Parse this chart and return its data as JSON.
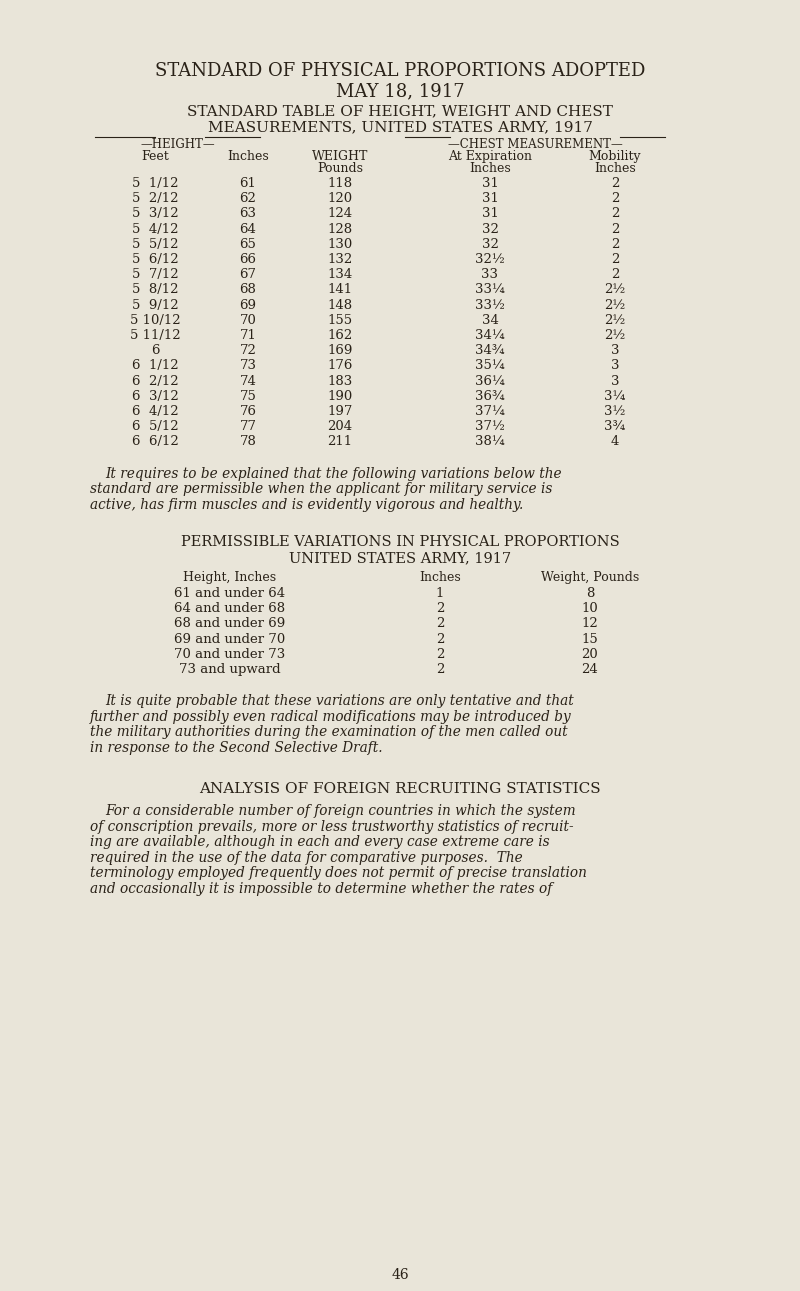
{
  "bg_color": "#e9e5d9",
  "text_color": "#2a2218",
  "page_title1": "STANDARD OF PHYSICAL PROPORTIONS ADOPTED",
  "page_title2": "MAY 18, 1917",
  "subtitle1": "STANDARD TABLE OF HEIGHT, WEIGHT AND CHEST",
  "subtitle2": "MEASUREMENTS, UNITED STATES ARMY, 1917",
  "table1_rows": [
    [
      "5  1/12",
      "61",
      "118",
      "31",
      "2"
    ],
    [
      "5  2/12",
      "62",
      "120",
      "31",
      "2"
    ],
    [
      "5  3/12",
      "63",
      "124",
      "31",
      "2"
    ],
    [
      "5  4/12",
      "64",
      "128",
      "32",
      "2"
    ],
    [
      "5  5/12",
      "65",
      "130",
      "32",
      "2"
    ],
    [
      "5  6/12",
      "66",
      "132",
      "32½",
      "2"
    ],
    [
      "5  7/12",
      "67",
      "134",
      "33",
      "2"
    ],
    [
      "5  8/12",
      "68",
      "141",
      "33¼",
      "2½"
    ],
    [
      "5  9/12",
      "69",
      "148",
      "33½",
      "2½"
    ],
    [
      "5 10/12",
      "70",
      "155",
      "34",
      "2½"
    ],
    [
      "5 11/12",
      "71",
      "162",
      "34¼",
      "2½"
    ],
    [
      "6",
      "72",
      "169",
      "34¾",
      "3"
    ],
    [
      "6  1/12",
      "73",
      "176",
      "35¼",
      "3"
    ],
    [
      "6  2/12",
      "74",
      "183",
      "36¼",
      "3"
    ],
    [
      "6  3/12",
      "75",
      "190",
      "36¾",
      "3¼"
    ],
    [
      "6  4/12",
      "76",
      "197",
      "37¼",
      "3½"
    ],
    [
      "6  5/12",
      "77",
      "204",
      "37½",
      "3¾"
    ],
    [
      "6  6/12",
      "78",
      "211",
      "38¼",
      "4"
    ]
  ],
  "interp_text": [
    "It requires to be explained that the following variations below the",
    "standard are permissible when the applicant for military service is",
    "active, has firm muscles and is evidently vigorous and healthy."
  ],
  "perm_title1": "PERMISSIBLE VARIATIONS IN PHYSICAL PROPORTIONS",
  "perm_title2": "UNITED STATES ARMY, 1917",
  "perm_col1": "Height, Inches",
  "perm_col2": "Inches",
  "perm_col3": "Weight, Pounds",
  "table2_rows": [
    [
      "61 and under 64",
      "1",
      "8"
    ],
    [
      "64 and under 68",
      "2",
      "10"
    ],
    [
      "68 and under 69",
      "2",
      "12"
    ],
    [
      "69 and under 70",
      "2",
      "15"
    ],
    [
      "70 and under 73",
      "2",
      "20"
    ],
    [
      "73 and upward",
      "2",
      "24"
    ]
  ],
  "final_text": [
    "It is quite probable that these variations are only tentative and that",
    "further and possibly even radical modifications may be introduced by",
    "the military authorities during the examination of the men called out",
    "in response to the Second Selective Draft."
  ],
  "analysis_title": "ANALYSIS OF FOREIGN RECRUITING STATISTICS",
  "analysis_text": [
    "For a considerable number of foreign countries in which the system",
    "of conscription prevails, more or less trustworthy statistics of recruit-",
    "ing are available, although in each and every case extreme care is",
    "required in the use of the data for comparative purposes.  The",
    "terminology employed frequently does not permit of precise translation",
    "and occasionally it is impossible to determine whether the rates of"
  ],
  "page_number": "46"
}
